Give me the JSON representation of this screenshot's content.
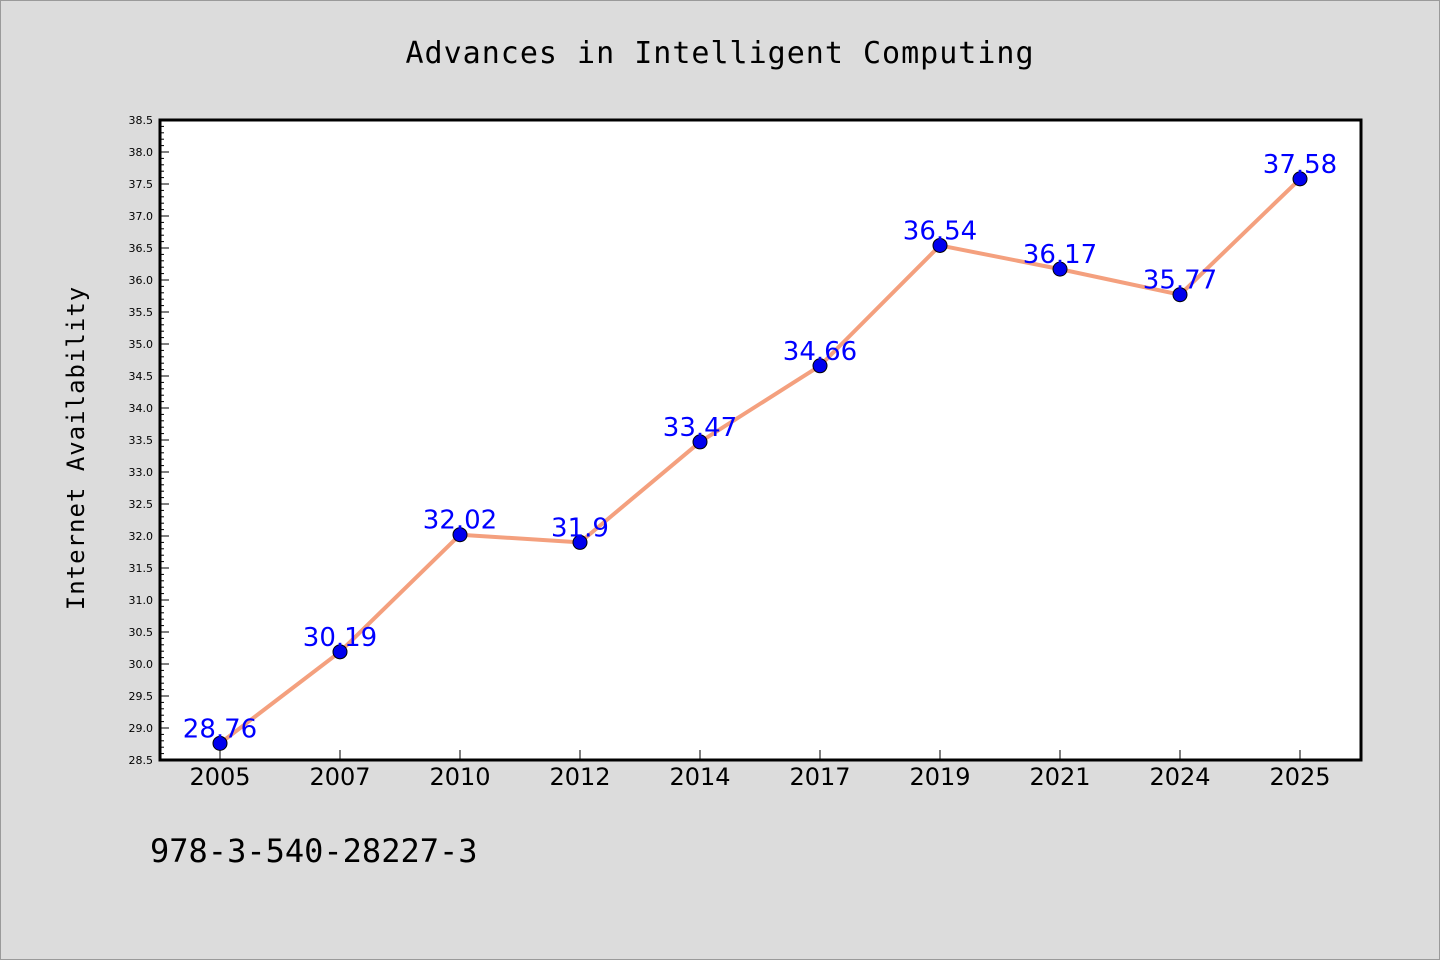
{
  "chart_data": {
    "type": "line",
    "title": "Advances in Intelligent Computing",
    "ylabel": "Internet Availability",
    "xlabel": "",
    "categories": [
      "2005",
      "2007",
      "2010",
      "2012",
      "2014",
      "2017",
      "2019",
      "2021",
      "2024",
      "2025"
    ],
    "values": [
      28.76,
      30.19,
      32.02,
      31.9,
      33.47,
      34.66,
      36.54,
      36.17,
      35.77,
      37.58
    ],
    "data_labels": [
      "28.76",
      "30.19",
      "32.02",
      "31.9",
      "33.47",
      "34.66",
      "36.54",
      "36.17",
      "35.77",
      "37.58"
    ],
    "ylim": [
      28.5,
      38.5
    ],
    "yticks": [
      "28.5",
      "29.0",
      "29.5",
      "30.0",
      "30.5",
      "31.0",
      "31.5",
      "32.0",
      "32.5",
      "33.0",
      "33.5",
      "34.0",
      "34.5",
      "35.0",
      "35.5",
      "36.0",
      "36.5",
      "37.0",
      "37.5",
      "38.0",
      "38.5"
    ],
    "grid": false,
    "line_color": "#f4a07e",
    "marker_color": "#0000ee",
    "label_color": "#0000ff"
  },
  "footer": {
    "text": "978-3-540-28227-3"
  }
}
